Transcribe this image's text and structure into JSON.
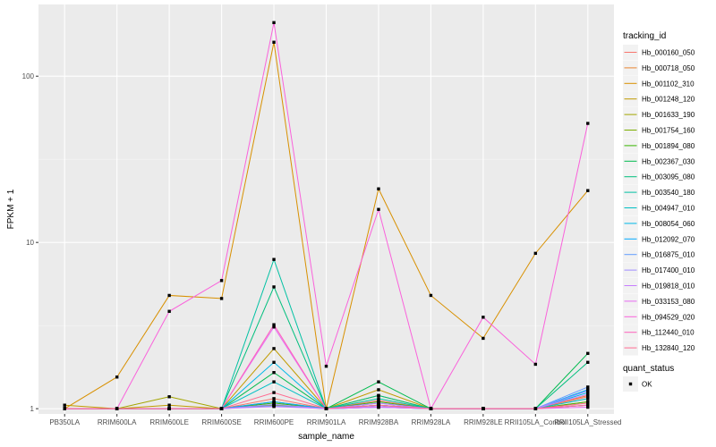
{
  "chart_data": {
    "type": "line",
    "xlabel": "sample_name",
    "ylabel": "FPKM + 1",
    "y_scale": "log10",
    "ylim": [
      0.93,
      270
    ],
    "y_ticks": [
      1,
      10,
      100
    ],
    "y_tick_labels": [
      "1",
      "10",
      "100"
    ],
    "grid": true,
    "legend_position": "right",
    "categories": [
      "PB350LA",
      "RRIM600LA",
      "RRIM600LE",
      "RRIM600SE",
      "RRIM600PE",
      "RRIM901LA",
      "RRIM928BA",
      "RRIM928LA",
      "RRIM928LE",
      "RRII105LA_Control",
      "RRII105LA_Stressed"
    ],
    "series": [
      {
        "name": "Hb_000160_050",
        "color": "#F8766D",
        "values": [
          1.0,
          1.0,
          1.0,
          1.0,
          1.15,
          1.0,
          1.12,
          1.0,
          1.0,
          1.0,
          1.18
        ]
      },
      {
        "name": "Hb_000718_050",
        "color": "#EA8331",
        "values": [
          1.0,
          1.0,
          1.0,
          1.0,
          1.05,
          1.0,
          1.05,
          1.0,
          1.0,
          1.0,
          1.2
        ]
      },
      {
        "name": "Hb_001102_310",
        "color": "#D89000",
        "values": [
          1.0,
          1.55,
          4.8,
          4.6,
          160,
          1.0,
          21.0,
          4.8,
          2.65,
          8.6,
          20.5
        ]
      },
      {
        "name": "Hb_001248_120",
        "color": "#C09B00",
        "values": [
          1.05,
          1.0,
          1.05,
          1.0,
          2.3,
          1.0,
          1.3,
          1.0,
          1.0,
          1.0,
          1.1
        ]
      },
      {
        "name": "Hb_001633_190",
        "color": "#A3A500",
        "values": [
          1.0,
          1.0,
          1.18,
          1.0,
          1.1,
          1.0,
          1.2,
          1.0,
          1.0,
          1.0,
          1.05
        ]
      },
      {
        "name": "Hb_001754_160",
        "color": "#7CAE00",
        "values": [
          1.0,
          1.0,
          1.0,
          1.0,
          1.05,
          1.0,
          1.05,
          1.0,
          1.0,
          1.0,
          1.05
        ]
      },
      {
        "name": "Hb_001894_080",
        "color": "#39B600",
        "values": [
          1.0,
          1.0,
          1.0,
          1.0,
          1.08,
          1.0,
          1.1,
          1.0,
          1.0,
          1.0,
          1.1
        ]
      },
      {
        "name": "Hb_002367_030",
        "color": "#00BB4E",
        "values": [
          1.0,
          1.0,
          1.0,
          1.0,
          1.65,
          1.0,
          1.45,
          1.0,
          1.0,
          1.0,
          2.15
        ]
      },
      {
        "name": "Hb_003095_080",
        "color": "#00BF7D",
        "values": [
          1.0,
          1.0,
          1.0,
          1.0,
          5.4,
          1.0,
          1.2,
          1.0,
          1.0,
          1.0,
          1.9
        ]
      },
      {
        "name": "Hb_003540_180",
        "color": "#00C1A3",
        "values": [
          1.0,
          1.0,
          1.0,
          1.0,
          7.9,
          1.0,
          1.15,
          1.0,
          1.0,
          1.0,
          1.3
        ]
      },
      {
        "name": "Hb_004947_010",
        "color": "#00BFC4",
        "values": [
          1.0,
          1.0,
          1.0,
          1.0,
          1.45,
          1.0,
          1.05,
          1.0,
          1.0,
          1.0,
          1.15
        ]
      },
      {
        "name": "Hb_008054_060",
        "color": "#00B8E7",
        "values": [
          1.0,
          1.0,
          1.0,
          1.0,
          1.9,
          1.0,
          1.08,
          1.0,
          1.0,
          1.0,
          1.25
        ]
      },
      {
        "name": "Hb_012092_070",
        "color": "#00A9FF",
        "values": [
          1.0,
          1.0,
          1.0,
          1.0,
          1.1,
          1.0,
          1.02,
          1.0,
          1.0,
          1.0,
          1.3
        ]
      },
      {
        "name": "Hb_016875_010",
        "color": "#619CFF",
        "values": [
          1.0,
          1.0,
          1.0,
          1.0,
          1.04,
          1.0,
          1.02,
          1.0,
          1.0,
          1.0,
          1.35
        ]
      },
      {
        "name": "Hb_017400_010",
        "color": "#9F8CFF",
        "values": [
          1.0,
          1.0,
          1.0,
          1.0,
          1.06,
          1.0,
          1.03,
          1.0,
          1.0,
          1.0,
          1.28
        ]
      },
      {
        "name": "Hb_019818_010",
        "color": "#C77CFF",
        "values": [
          1.0,
          1.0,
          1.0,
          1.0,
          1.03,
          1.0,
          1.08,
          1.0,
          1.0,
          1.0,
          1.22
        ]
      },
      {
        "name": "Hb_033153_080",
        "color": "#E76BF3",
        "values": [
          1.0,
          1.0,
          1.0,
          1.0,
          3.1,
          1.0,
          1.02,
          1.0,
          1.0,
          1.0,
          1.02
        ]
      },
      {
        "name": "Hb_094529_020",
        "color": "#FA62DB",
        "values": [
          1.0,
          1.0,
          3.85,
          5.9,
          210,
          1.8,
          15.8,
          1.0,
          3.55,
          1.85,
          52
        ]
      },
      {
        "name": "Hb_112440_010",
        "color": "#FF62BC",
        "values": [
          1.0,
          1.0,
          1.0,
          1.0,
          3.2,
          1.0,
          1.05,
          1.0,
          1.0,
          1.0,
          1.05
        ]
      },
      {
        "name": "Hb_132840_120",
        "color": "#FF6C91",
        "values": [
          1.0,
          1.0,
          1.0,
          1.0,
          1.25,
          1.0,
          1.05,
          1.0,
          1.0,
          1.0,
          1.08
        ]
      }
    ],
    "legend": {
      "color_title": "tracking_id",
      "shape_title": "quant_status",
      "shape_entries": [
        "OK"
      ]
    }
  }
}
